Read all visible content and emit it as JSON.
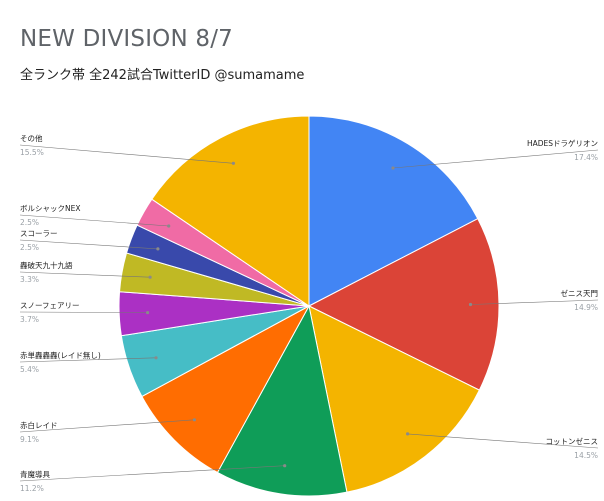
{
  "chart_data": {
    "type": "pie",
    "title": "NEW DIVISION 8/7",
    "subtitle": "全ランク帯 全242試合TwitterID @sumamame",
    "slices": [
      {
        "label": "HADESドラゲリオン",
        "value": 17.4,
        "pct_label": "17.4%",
        "color": "#4285f4"
      },
      {
        "label": "ゼニス天門",
        "value": 14.9,
        "pct_label": "14.9%",
        "color": "#db4437"
      },
      {
        "label": "コットンゼニス",
        "value": 14.5,
        "pct_label": "14.5%",
        "color": "#f4b400"
      },
      {
        "label": "青魔導具",
        "value": 11.2,
        "pct_label": "11.2%",
        "color": "#0f9d58"
      },
      {
        "label": "赤白レイド",
        "value": 9.1,
        "pct_label": "9.1%",
        "color": "#ff6d01"
      },
      {
        "label": "赤単轟轟轟(レイド無し)",
        "value": 5.4,
        "pct_label": "5.4%",
        "color": "#46bdc6"
      },
      {
        "label": "スノーフェアリー",
        "value": 3.7,
        "pct_label": "3.7%",
        "color": "#ab30c4"
      },
      {
        "label": "轟破天九十九語",
        "value": 3.3,
        "pct_label": "3.3%",
        "color": "#c0b924"
      },
      {
        "label": "スコーラー",
        "value": 2.5,
        "pct_label": "2.5%",
        "color": "#3949ab"
      },
      {
        "label": "ボルシャックNEX",
        "value": 2.5,
        "pct_label": "2.5%",
        "color": "#f06ba5"
      },
      {
        "label": "その他",
        "value": 15.5,
        "pct_label": "15.5%",
        "color": "#f4b400"
      }
    ]
  }
}
